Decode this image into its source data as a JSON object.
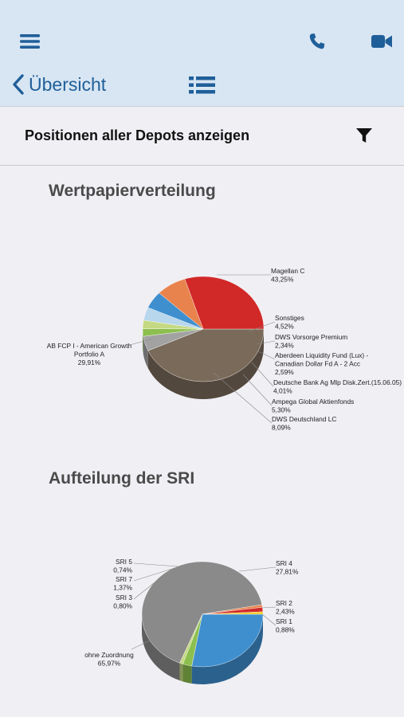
{
  "header": {
    "back_label": "Übersicht",
    "icons": [
      "menu-icon",
      "phone-icon",
      "video-camera-icon",
      "list-icon"
    ]
  },
  "filter": {
    "title": "Positionen aller Depots anzeigen",
    "icon": "filter-icon"
  },
  "charts": {
    "wp_title": "Wertpapierverteilung",
    "sri_title": "Aufteilung der SRI"
  },
  "colors": {
    "header_bg": "#d8e6f3",
    "accent": "#1f5f99"
  },
  "chart_data": [
    {
      "type": "pie",
      "title": "Wertpapierverteilung",
      "slices": [
        {
          "label": "Magellan C",
          "value": 43.25,
          "color": "#7a6a59",
          "lines": [
            "Magellan C",
            "43,25%"
          ]
        },
        {
          "label": "Sonstiges",
          "value": 4.52,
          "color": "#a2a2a2",
          "lines": [
            "Sonstiges",
            "4,52%"
          ]
        },
        {
          "label": "DWS Vorsorge Premium",
          "value": 2.34,
          "color": "#8dbf4f",
          "lines": [
            "DWS Vorsorge Premium",
            "2,34%"
          ]
        },
        {
          "label": "Aberdeen Liquidity Fund (Lux) - Canadian Dollar Fd A - 2 Acc",
          "value": 2.59,
          "color": "#c5d983",
          "lines": [
            "Aberdeen Liquidity Fund (Lux) -",
            "Canadian Dollar Fd A - 2 Acc",
            "2,59%"
          ]
        },
        {
          "label": "Deutsche Bank Ag Mlp Disk.Zert.(15.06.05)",
          "value": 4.01,
          "color": "#b8d6ec",
          "lines": [
            "Deutsche Bank Ag Mlp Disk.Zert.(15.06.05)",
            "4,01%"
          ]
        },
        {
          "label": "Ampega Global Aktienfonds",
          "value": 5.3,
          "color": "#3f8fcf",
          "lines": [
            "Ampega Global Aktienfonds",
            "5,30%"
          ]
        },
        {
          "label": "DWS Deutschland LC",
          "value": 8.09,
          "color": "#e8834d",
          "lines": [
            "DWS Deutschland LC",
            "8,09%"
          ]
        },
        {
          "label": "AB FCP I - American Growth Portfolio A",
          "value": 29.91,
          "color": "#d12828",
          "lines": [
            "AB FCP I - American Growth",
            "Portfolio A",
            "29,91%"
          ]
        }
      ]
    },
    {
      "type": "pie",
      "title": "Aufteilung der SRI",
      "slices": [
        {
          "label": "SRI 4",
          "value": 27.81,
          "color": "#3f8fcf",
          "lines": [
            "SRI 4",
            "27,81%"
          ]
        },
        {
          "label": "SRI 2",
          "value": 2.43,
          "color": "#8dbf4f",
          "lines": [
            "SRI 2",
            "2,43%"
          ]
        },
        {
          "label": "SRI 1",
          "value": 0.88,
          "color": "#c5d983",
          "lines": [
            "SRI 1",
            "0,88%"
          ]
        },
        {
          "label": "ohne Zuordnung",
          "value": 65.97,
          "color": "#8a8a8a",
          "lines": [
            "ohne Zuordnung",
            "65,97%"
          ]
        },
        {
          "label": "SRI 3",
          "value": 0.8,
          "color": "#e8834d",
          "lines": [
            "SRI 3",
            "0,80%"
          ]
        },
        {
          "label": "SRI 7",
          "value": 1.37,
          "color": "#d12828",
          "lines": [
            "SRI 7",
            "1,37%"
          ]
        },
        {
          "label": "SRI 5",
          "value": 0.74,
          "color": "#f2c81e",
          "lines": [
            "SRI 5",
            "0,74%"
          ]
        }
      ]
    }
  ]
}
